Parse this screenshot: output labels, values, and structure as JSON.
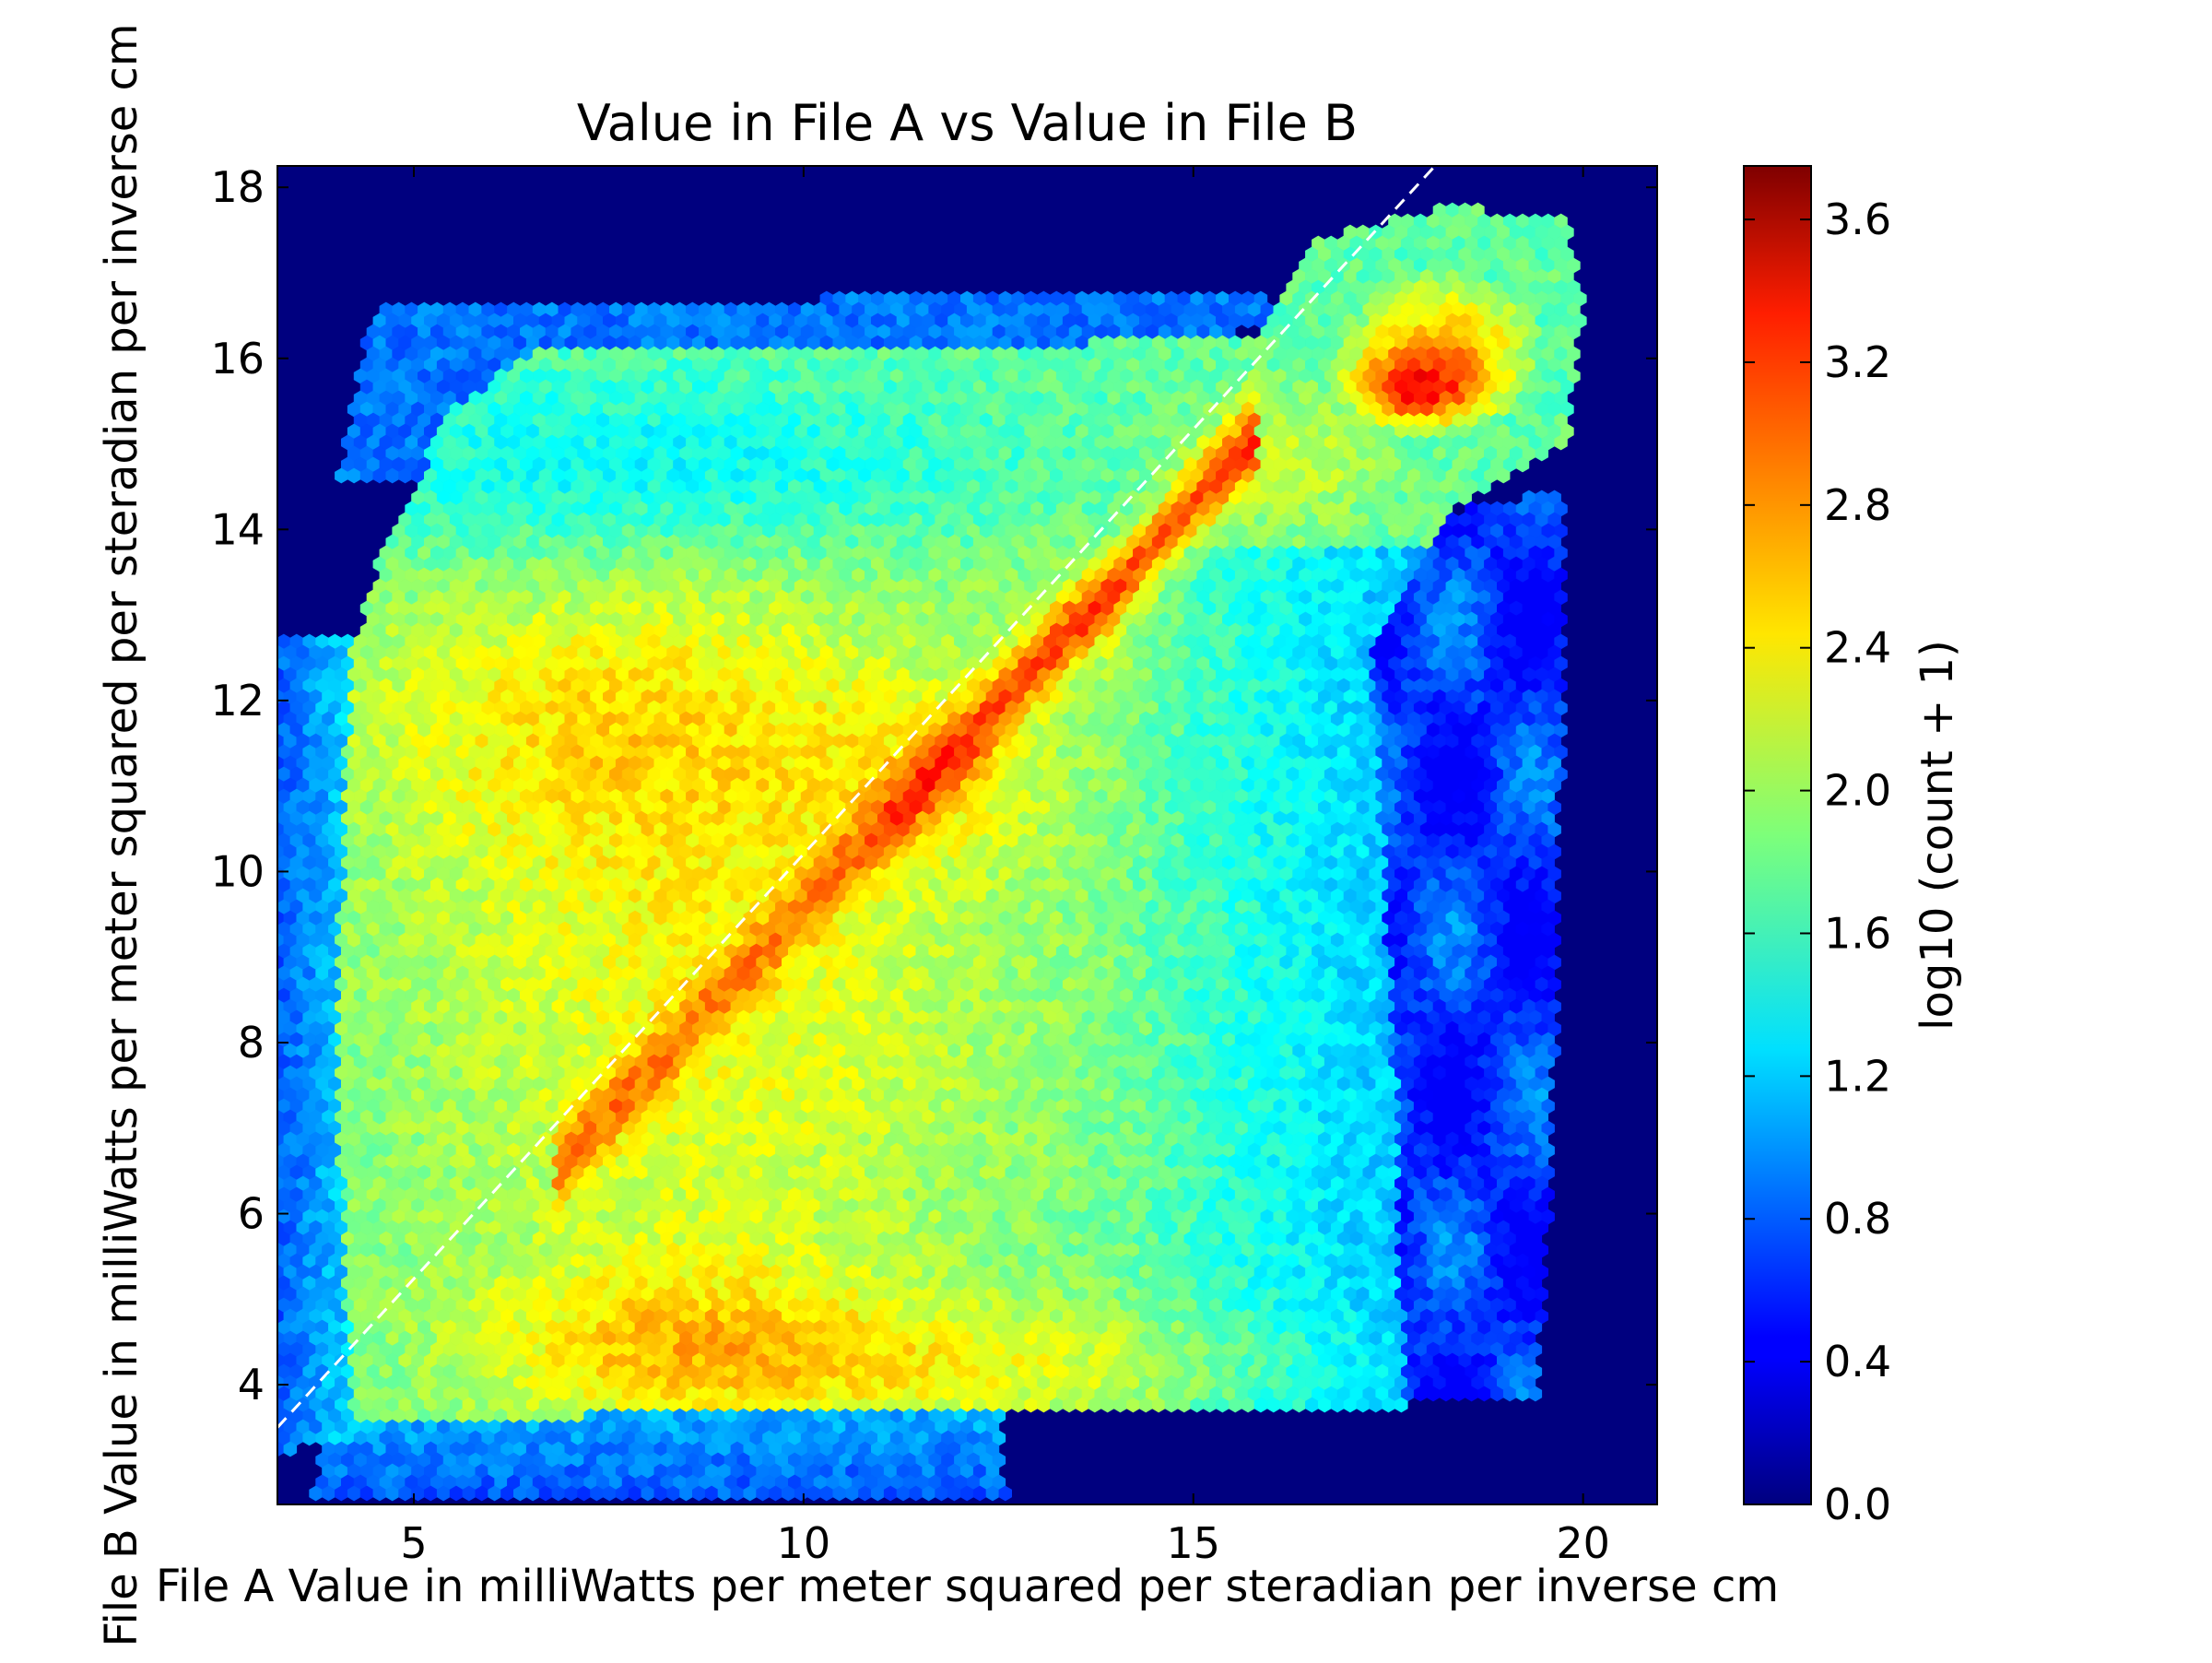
{
  "chart_data": {
    "type": "heatmap",
    "subtype": "hexbin",
    "title": "Value in File A vs Value in File B",
    "xlabel": "File A Value in milliWatts per meter squared per steradian per inverse cm",
    "ylabel": "File B Value in milliWatts per meter squared per steradian per inverse cm",
    "xlim": [
      3.25,
      20.95
    ],
    "ylim": [
      2.6,
      18.25
    ],
    "x_ticks": [
      5,
      10,
      15,
      20
    ],
    "x_tick_labels": [
      "5",
      "10",
      "15",
      "20"
    ],
    "y_ticks": [
      4,
      6,
      8,
      10,
      12,
      14,
      16,
      18
    ],
    "y_tick_labels": [
      "4",
      "6",
      "8",
      "10",
      "12",
      "14",
      "16",
      "18"
    ],
    "colormap": "jet",
    "background_color": "#00007f",
    "colorbar": {
      "label": "log10 (count + 1)",
      "range": [
        0.0,
        3.75
      ],
      "ticks": [
        0.0,
        0.4,
        0.8,
        1.2,
        1.6,
        2.0,
        2.4,
        2.8,
        3.2,
        3.6
      ],
      "tick_labels": [
        "0.0",
        "0.4",
        "0.8",
        "1.2",
        "1.6",
        "2.0",
        "2.4",
        "2.8",
        "3.2",
        "3.6"
      ]
    },
    "reference_line": {
      "style": "dashed",
      "color": "#ffffff",
      "x": [
        3.25,
        18.1
      ],
      "y": [
        3.5,
        18.25
      ]
    },
    "density_regions": [
      {
        "region": "main block",
        "x": [
          4.0,
          17.5
        ],
        "y": [
          3.5,
          15.2
        ],
        "log_count": 2.1
      },
      {
        "region": "upper band",
        "x": [
          5.5,
          16.0
        ],
        "y": [
          14.5,
          16.3
        ],
        "log_count": 1.7
      },
      {
        "region": "diagonal ridge",
        "x": [
          7.2,
          15.5
        ],
        "y": [
          7.3,
          15.0
        ],
        "log_count": 2.95
      },
      {
        "region": "diagonal ridge core",
        "x": [
          11.3,
          13.0
        ],
        "y": [
          10.7,
          12.0
        ],
        "log_count": 3.2
      },
      {
        "region": "high cluster",
        "x": [
          16.5,
          20.0
        ],
        "y": [
          14.6,
          17.5
        ],
        "log_count": 3.1
      },
      {
        "region": "peak",
        "x": [
          17.7,
          17.9
        ],
        "y": [
          15.6,
          15.7
        ],
        "log_count": 3.7
      },
      {
        "region": "lower yellow band",
        "x": [
          6.5,
          10.5
        ],
        "y": [
          3.9,
          5.3
        ],
        "log_count": 2.5
      },
      {
        "region": "right sparse tail",
        "x": [
          17.5,
          20.2
        ],
        "y": [
          3.8,
          14.5
        ],
        "log_count": 0.8
      },
      {
        "region": "bottom edge",
        "x": [
          3.5,
          12.5
        ],
        "y": [
          2.6,
          3.8
        ],
        "log_count": 0.9
      },
      {
        "region": "left edge",
        "x": [
          3.25,
          4.5
        ],
        "y": [
          3.2,
          12.7
        ],
        "log_count": 0.9
      }
    ]
  }
}
